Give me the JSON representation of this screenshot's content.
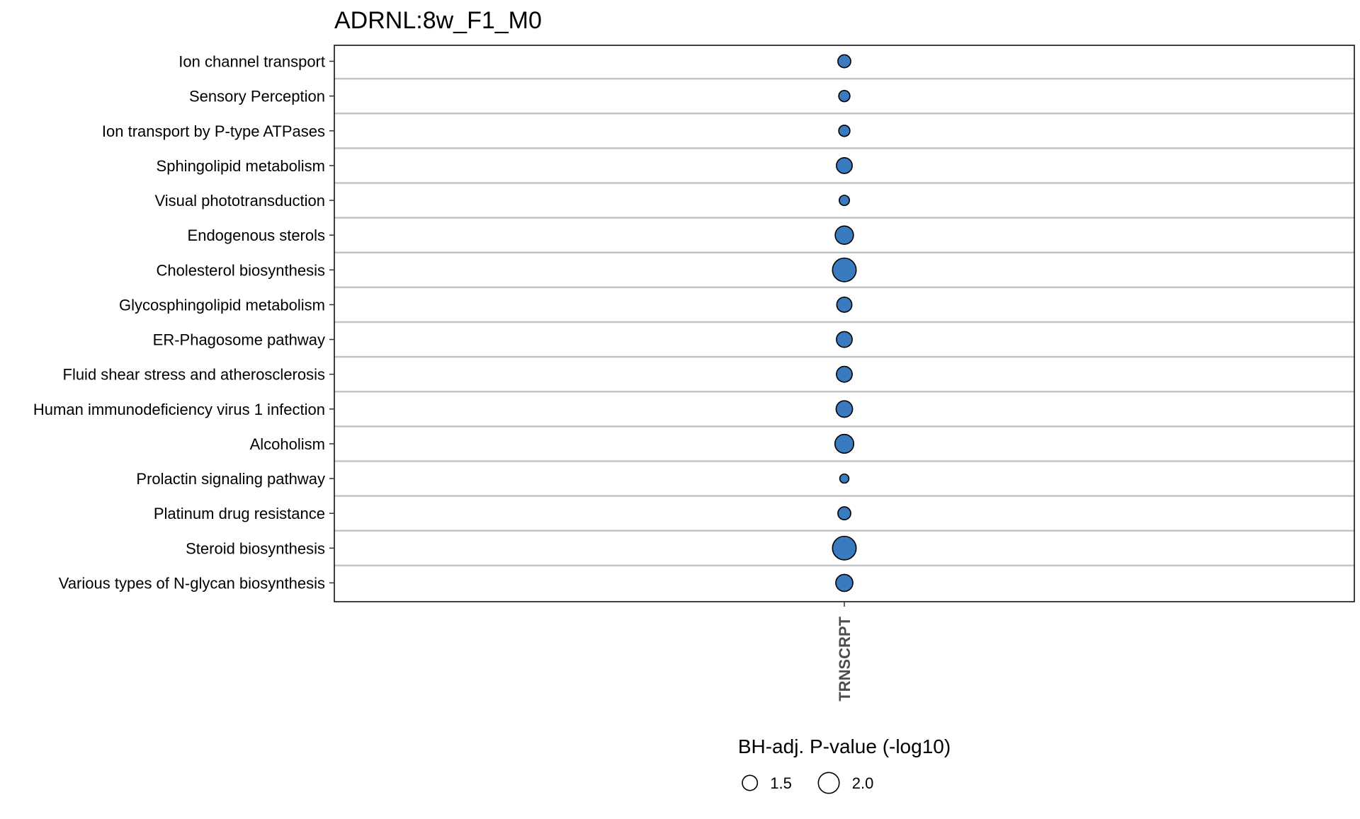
{
  "chart_data": {
    "type": "scatter",
    "title": "ADRNL:8w_F1_M0",
    "xlabel": "",
    "ylabel": "",
    "x_categories": [
      "TRNSCRPT"
    ],
    "y_categories": [
      "Ion channel transport",
      "Sensory Perception",
      "Ion transport by P-type ATPases",
      "Sphingolipid metabolism",
      "Visual phototransduction",
      "Endogenous sterols",
      "Cholesterol biosynthesis",
      "Glycosphingolipid metabolism",
      "ER-Phagosome pathway",
      "Fluid shear stress and atherosclerosis",
      "Human immunodeficiency virus 1 infection",
      "Alcoholism",
      "Prolactin signaling pathway",
      "Platinum drug resistance",
      "Steroid biosynthesis",
      "Various types of N-glycan biosynthesis"
    ],
    "points": [
      {
        "y": "Ion channel transport",
        "x": "TRNSCRPT",
        "value": 1.35
      },
      {
        "y": "Sensory Perception",
        "x": "TRNSCRPT",
        "value": 1.25
      },
      {
        "y": "Ion transport by P-type ATPases",
        "x": "TRNSCRPT",
        "value": 1.25
      },
      {
        "y": "Sphingolipid metabolism",
        "x": "TRNSCRPT",
        "value": 1.55
      },
      {
        "y": "Visual phototransduction",
        "x": "TRNSCRPT",
        "value": 1.2
      },
      {
        "y": "Endogenous sterols",
        "x": "TRNSCRPT",
        "value": 1.75
      },
      {
        "y": "Cholesterol biosynthesis",
        "x": "TRNSCRPT",
        "value": 2.3
      },
      {
        "y": "Glycosphingolipid metabolism",
        "x": "TRNSCRPT",
        "value": 1.5
      },
      {
        "y": "ER-Phagosome pathway",
        "x": "TRNSCRPT",
        "value": 1.55
      },
      {
        "y": "Fluid shear stress and atherosclerosis",
        "x": "TRNSCRPT",
        "value": 1.55
      },
      {
        "y": "Human immunodeficiency virus 1 infection",
        "x": "TRNSCRPT",
        "value": 1.6
      },
      {
        "y": "Alcoholism",
        "x": "TRNSCRPT",
        "value": 1.8
      },
      {
        "y": "Prolactin signaling pathway",
        "x": "TRNSCRPT",
        "value": 1.15
      },
      {
        "y": "Platinum drug resistance",
        "x": "TRNSCRPT",
        "value": 1.35
      },
      {
        "y": "Steroid biosynthesis",
        "x": "TRNSCRPT",
        "value": 2.3
      },
      {
        "y": "Various types of N-glycan biosynthesis",
        "x": "TRNSCRPT",
        "value": 1.65
      }
    ],
    "size_legend": {
      "title": "BH-adj. P-value (-log10)",
      "values": [
        1.5,
        2.0
      ],
      "labels": [
        "1.5",
        "2.0"
      ],
      "placement": "bottom"
    },
    "point_fill": "#3a7bbf",
    "point_stroke": "#000000",
    "grid_color": "#c4c4c4",
    "grid": true
  }
}
